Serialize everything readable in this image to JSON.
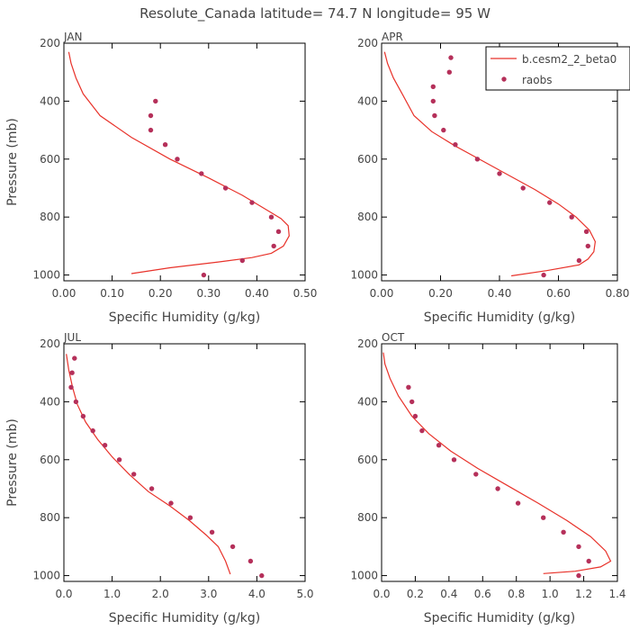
{
  "title": "Resolute_Canada  latitude= 74.7 N longitude= 95 W",
  "colors": {
    "model": "#e8322a",
    "obs": "#b5305a",
    "text": "#444444"
  },
  "legend": {
    "placement": "top-right of APR panel",
    "model_label": "b.cesm2_2_beta0",
    "obs_label": "raobs"
  },
  "chart_data": [
    {
      "type": "line",
      "panel": "JAN",
      "title": "JAN",
      "xlabel": "Specific Humidity (g/kg)",
      "ylabel": "Pressure (mb)",
      "xlim": [
        0,
        0.5
      ],
      "ylim": [
        1020,
        200
      ],
      "y_reversed": true,
      "xticks": [
        "0.00",
        "0.10",
        "0.20",
        "0.30",
        "0.40",
        "0.50"
      ],
      "yticks": [
        "200",
        "400",
        "600",
        "800",
        "1000"
      ],
      "series": [
        {
          "name": "b.cesm2_2_beta0",
          "kind": "line",
          "x": [
            0.01,
            0.015,
            0.025,
            0.04,
            0.075,
            0.14,
            0.22,
            0.3,
            0.37,
            0.42,
            0.45,
            0.465,
            0.467,
            0.455,
            0.43,
            0.39,
            0.32,
            0.22,
            0.14
          ],
          "y": [
            230,
            270,
            320,
            375,
            450,
            525,
            600,
            665,
            725,
            775,
            805,
            830,
            865,
            900,
            925,
            940,
            955,
            975,
            995
          ]
        },
        {
          "name": "raobs",
          "kind": "scatter",
          "x": [
            0.19,
            0.18,
            0.18,
            0.21,
            0.235,
            0.285,
            0.335,
            0.39,
            0.43,
            0.445,
            0.435,
            0.37,
            0.29
          ],
          "y": [
            400,
            450,
            500,
            550,
            600,
            650,
            700,
            750,
            800,
            850,
            900,
            950,
            1000
          ]
        }
      ]
    },
    {
      "type": "line",
      "panel": "APR",
      "title": "APR",
      "xlabel": "Specific Humidity (g/kg)",
      "ylabel": "",
      "xlim": [
        0,
        0.8
      ],
      "ylim": [
        1020,
        200
      ],
      "y_reversed": true,
      "xticks": [
        "0.00",
        "0.20",
        "0.40",
        "0.60",
        "0.80"
      ],
      "yticks": [
        "200",
        "400",
        "600",
        "800",
        "1000"
      ],
      "series": [
        {
          "name": "b.cesm2_2_beta0",
          "kind": "line",
          "x": [
            0.01,
            0.02,
            0.04,
            0.07,
            0.11,
            0.17,
            0.25,
            0.34,
            0.43,
            0.52,
            0.6,
            0.66,
            0.705,
            0.725,
            0.72,
            0.7,
            0.67,
            0.56,
            0.44
          ],
          "y": [
            230,
            270,
            320,
            375,
            450,
            505,
            555,
            605,
            655,
            705,
            755,
            800,
            845,
            885,
            920,
            945,
            965,
            985,
            1003
          ]
        },
        {
          "name": "raobs",
          "kind": "scatter",
          "x": [
            0.235,
            0.23,
            0.175,
            0.175,
            0.18,
            0.21,
            0.25,
            0.325,
            0.4,
            0.48,
            0.57,
            0.645,
            0.695,
            0.7,
            0.67,
            0.55
          ],
          "y": [
            250,
            300,
            350,
            400,
            450,
            500,
            550,
            600,
            650,
            700,
            750,
            800,
            850,
            900,
            950,
            1000
          ]
        }
      ]
    },
    {
      "type": "line",
      "panel": "JUL",
      "title": "JUL",
      "xlabel": "Specific Humidity (g/kg)",
      "ylabel": "Pressure (mb)",
      "xlim": [
        0,
        5.0
      ],
      "ylim": [
        1020,
        200
      ],
      "y_reversed": true,
      "xticks": [
        "0.0",
        "1.0",
        "2.0",
        "3.0",
        "4.0",
        "5.0"
      ],
      "series": [
        {
          "name": "b.cesm2_2_beta0",
          "kind": "line",
          "x": [
            0.05,
            0.1,
            0.18,
            0.28,
            0.45,
            0.7,
            1.0,
            1.35,
            1.75,
            2.2,
            2.6,
            2.95,
            3.2,
            3.35,
            3.45
          ],
          "y": [
            235,
            290,
            350,
            410,
            470,
            530,
            590,
            650,
            710,
            760,
            810,
            860,
            900,
            950,
            995
          ]
        },
        {
          "name": "raobs",
          "kind": "scatter",
          "x": [
            0.22,
            0.17,
            0.15,
            0.25,
            0.4,
            0.6,
            0.85,
            1.15,
            1.45,
            1.82,
            2.22,
            2.62,
            3.07,
            3.5,
            3.87,
            4.1
          ],
          "y": [
            250,
            300,
            350,
            400,
            450,
            500,
            550,
            600,
            650,
            700,
            750,
            800,
            850,
            900,
            950,
            1000
          ]
        }
      ]
    },
    {
      "type": "line",
      "panel": "OCT",
      "title": "OCT",
      "xlabel": "Specific Humidity (g/kg)",
      "ylabel": "",
      "xlim": [
        0,
        1.4
      ],
      "ylim": [
        1020,
        200
      ],
      "y_reversed": true,
      "xticks": [
        "0.0",
        "0.2",
        "0.4",
        "0.6",
        "0.8",
        "1.0",
        "1.2",
        "1.4"
      ],
      "yticks": [
        "200",
        "400",
        "600",
        "800",
        "1000"
      ],
      "series": [
        {
          "name": "b.cesm2_2_beta0",
          "kind": "line",
          "x": [
            0.01,
            0.02,
            0.05,
            0.1,
            0.18,
            0.28,
            0.41,
            0.57,
            0.75,
            0.93,
            1.1,
            1.24,
            1.33,
            1.36,
            1.3,
            1.15,
            0.96
          ],
          "y": [
            230,
            270,
            320,
            380,
            450,
            510,
            570,
            630,
            690,
            750,
            810,
            865,
            915,
            950,
            970,
            985,
            993
          ]
        },
        {
          "name": "raobs",
          "kind": "scatter",
          "x": [
            0.16,
            0.18,
            0.2,
            0.24,
            0.34,
            0.43,
            0.56,
            0.69,
            0.81,
            0.96,
            1.08,
            1.17,
            1.23,
            1.17
          ],
          "y": [
            350,
            400,
            450,
            500,
            550,
            600,
            650,
            700,
            750,
            800,
            850,
            900,
            950,
            1000
          ]
        }
      ]
    }
  ]
}
